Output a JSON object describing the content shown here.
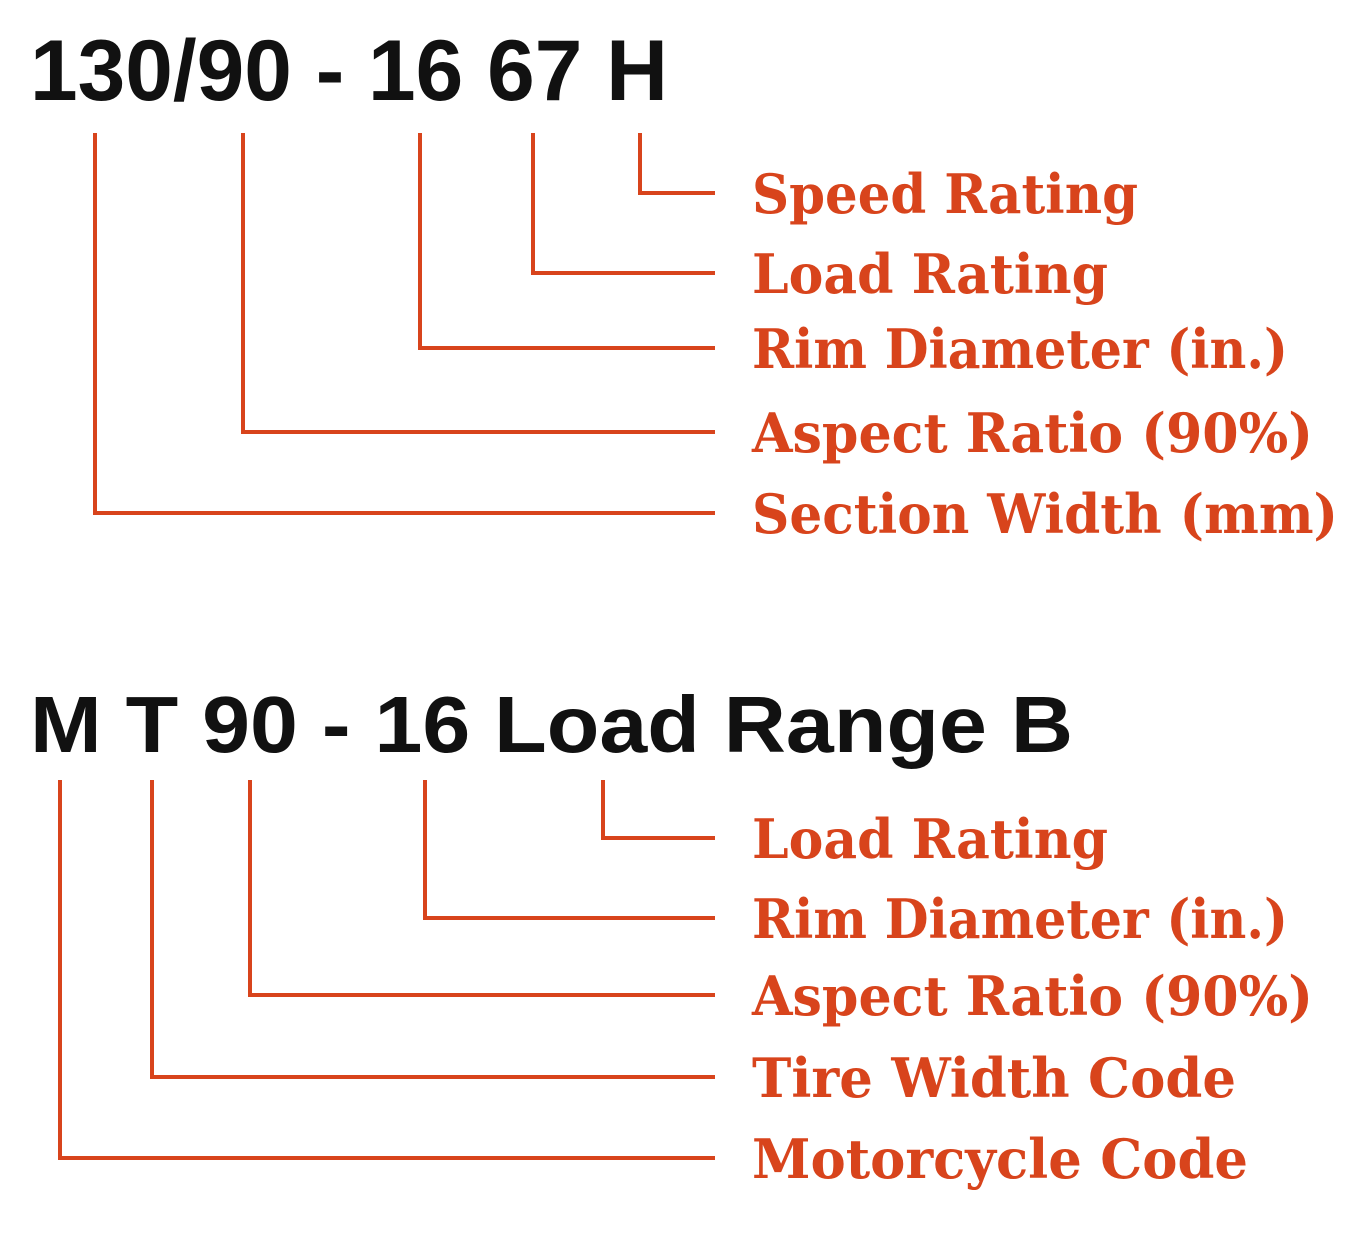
{
  "accent_color": "#d8441c",
  "text_color": "#111111",
  "diagrams": [
    {
      "code": "130/90 - 16 67 H",
      "labels": [
        "Speed Rating",
        "Load Rating",
        "Rim Diameter (in.)",
        "Aspect Ratio (90%)",
        "Section Width (mm)"
      ]
    },
    {
      "code": "M T 90 - 16 Load Range B",
      "labels": [
        "Load Rating",
        "Rim Diameter (in.)",
        "Aspect Ratio (90%)",
        "Tire Width Code",
        "Motorcycle Code"
      ]
    }
  ]
}
